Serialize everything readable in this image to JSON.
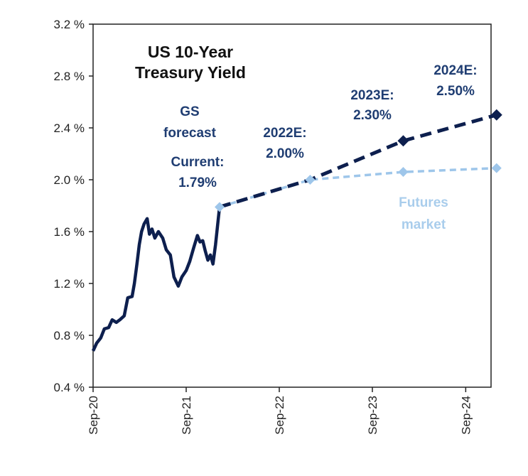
{
  "chart_data": {
    "type": "line",
    "title": "US 10-Year Treasury Yield",
    "title_lines": [
      "US 10-Year",
      "Treasury Yield"
    ],
    "x_ticks": [
      "Sep-20",
      "Sep-21",
      "Sep-22",
      "Sep-23",
      "Sep-24"
    ],
    "y_ticks": [
      "0.4 %",
      "0.8 %",
      "1.2 %",
      "1.6 %",
      "2.0 %",
      "2.4 %",
      "2.8 %",
      "3.2 %"
    ],
    "ylim": [
      0.4,
      3.2
    ],
    "xlim": [
      "2020-09",
      "2024-11"
    ],
    "grid": false,
    "colors": {
      "history": "#0d1f4e",
      "gs_forecast": "#0d1f4e",
      "futures": "#9ec6ea",
      "gs_text": "#1f3d72",
      "futures_text": "#a9cdec",
      "axis": "#222222"
    },
    "series": [
      {
        "style": "solid",
        "x": [
          "2020-09-01",
          "2020-09-15",
          "2020-10-01",
          "2020-10-15",
          "2020-11-01",
          "2020-11-15",
          "2020-12-01",
          "2020-12-15",
          "2021-01-01",
          "2021-01-15",
          "2021-02-01",
          "2021-02-10",
          "2021-02-20",
          "2021-03-01",
          "2021-03-10",
          "2021-03-20",
          "2021-04-01",
          "2021-04-10",
          "2021-04-20",
          "2021-05-01",
          "2021-05-15",
          "2021-06-01",
          "2021-06-15",
          "2021-07-01",
          "2021-07-15",
          "2021-08-01",
          "2021-08-15",
          "2021-09-01",
          "2021-09-15",
          "2021-10-01",
          "2021-10-15",
          "2021-10-25",
          "2021-11-05",
          "2021-11-15",
          "2021-11-25",
          "2021-12-05",
          "2021-12-15",
          "2021-12-25",
          "2022-01-05",
          "2022-01-10"
        ],
        "values": [
          0.68,
          0.74,
          0.78,
          0.85,
          0.86,
          0.92,
          0.9,
          0.92,
          0.95,
          1.09,
          1.1,
          1.2,
          1.35,
          1.5,
          1.6,
          1.66,
          1.7,
          1.58,
          1.62,
          1.55,
          1.6,
          1.55,
          1.46,
          1.42,
          1.25,
          1.18,
          1.25,
          1.3,
          1.37,
          1.48,
          1.57,
          1.52,
          1.53,
          1.45,
          1.38,
          1.42,
          1.35,
          1.5,
          1.7,
          1.79
        ]
      },
      {
        "name": "Futures market",
        "style": "dashed",
        "x": [
          "2022-01-10",
          "2022-12-31",
          "2023-12-31",
          "2024-12-31"
        ],
        "values": [
          1.79,
          2.0,
          2.06,
          2.09
        ]
      },
      {
        "name": "GS forecast",
        "style": "dashed",
        "x": [
          "2022-01-10",
          "2022-12-31",
          "2023-12-31",
          "2024-12-31"
        ],
        "values": [
          1.79,
          2.0,
          2.3,
          2.5
        ]
      }
    ],
    "annotations": {
      "gs_forecast": [
        "GS",
        "forecast"
      ],
      "current": [
        "Current:",
        "1.79%"
      ],
      "e2022": [
        "2022E:",
        "2.00%"
      ],
      "e2023": [
        "2023E:",
        "2.30%"
      ],
      "e2024": [
        "2024E:",
        "2.50%"
      ],
      "futures": [
        "Futures",
        "market"
      ]
    }
  }
}
